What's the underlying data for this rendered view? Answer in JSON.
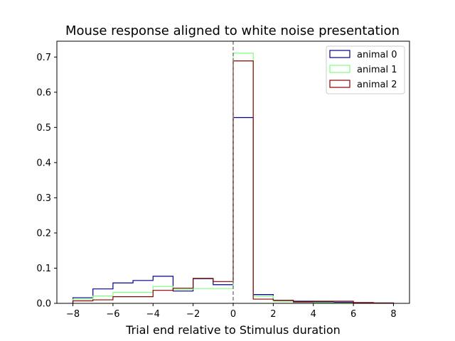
{
  "chart_data": {
    "type": "histogram-step",
    "title": "Mouse response aligned to white noise presentation",
    "xlabel": "Trial end relative to Stimulus duration",
    "ylabel": "",
    "xlim": [
      -8.8,
      8.8
    ],
    "ylim": [
      0,
      0.745
    ],
    "xticks": [
      -8,
      -6,
      -4,
      -2,
      0,
      2,
      4,
      6,
      8
    ],
    "xtick_labels": [
      "−8",
      "−6",
      "−4",
      "−2",
      "0",
      "2",
      "4",
      "6",
      "8"
    ],
    "yticks": [
      0.0,
      0.1,
      0.2,
      0.3,
      0.4,
      0.5,
      0.6,
      0.7
    ],
    "ytick_labels": [
      "0.0",
      "0.1",
      "0.2",
      "0.3",
      "0.4",
      "0.5",
      "0.6",
      "0.7"
    ],
    "bin_edges": [
      -8,
      -7,
      -6,
      -5,
      -4,
      -3,
      -2,
      -1,
      0,
      1,
      2,
      3,
      4,
      5,
      6,
      7,
      8
    ],
    "vline": {
      "x": 0,
      "color": "#808080",
      "style": "dashed"
    },
    "legend_position": "top-right",
    "grid": false,
    "series": [
      {
        "name": "animal 0",
        "color": "#00008b",
        "values": [
          0.016,
          0.041,
          0.058,
          0.065,
          0.077,
          0.035,
          0.07,
          0.053,
          0.528,
          0.025,
          0.008,
          0.006,
          0.004,
          0.003,
          0.002,
          0.001
        ]
      },
      {
        "name": "animal 1",
        "color": "#7fff7f",
        "values": [
          0.012,
          0.021,
          0.031,
          0.031,
          0.048,
          0.04,
          0.042,
          0.042,
          0.711,
          0.021,
          0.006,
          0.003,
          0.002,
          0.001,
          0.001,
          0.001
        ]
      },
      {
        "name": "animal 2",
        "color": "#8b0000",
        "values": [
          0.007,
          0.01,
          0.019,
          0.019,
          0.037,
          0.043,
          0.071,
          0.062,
          0.689,
          0.012,
          0.009,
          0.004,
          0.006,
          0.006,
          0.002,
          0.001
        ]
      }
    ]
  }
}
